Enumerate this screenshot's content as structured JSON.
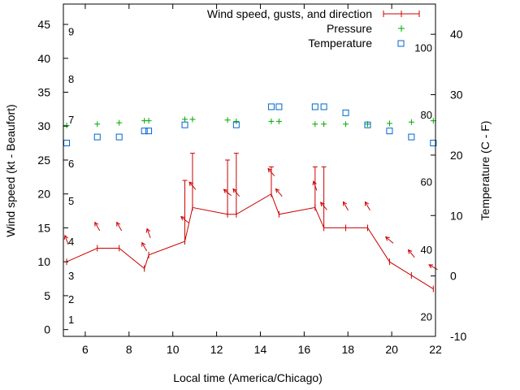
{
  "chart_data": {
    "type": "line",
    "xlabel": "Local time (America/Chicago)",
    "ylabel_left": "Wind speed (kt - Beaufort)",
    "ylabel_right": "Temperature (C - F)",
    "xlim": [
      5,
      22
    ],
    "x_ticks": [
      6,
      8,
      10,
      12,
      14,
      16,
      18,
      20,
      22
    ],
    "ylim_left": [
      -1,
      48
    ],
    "y_ticks_left": [
      0,
      5,
      10,
      15,
      20,
      25,
      30,
      35,
      40,
      45
    ],
    "ylim_right": [
      -10,
      45
    ],
    "y_ticks_right": [
      -10,
      0,
      10,
      20,
      30,
      40
    ],
    "beaufort_labels": [
      {
        "label": "1",
        "speed": 1.5
      },
      {
        "label": "2",
        "speed": 4.5
      },
      {
        "label": "3",
        "speed": 8
      },
      {
        "label": "4",
        "speed": 13
      },
      {
        "label": "5",
        "speed": 19
      },
      {
        "label": "6",
        "speed": 24.5
      },
      {
        "label": "7",
        "speed": 31
      },
      {
        "label": "8",
        "speed": 37
      },
      {
        "label": "9",
        "speed": 44
      }
    ],
    "fahrenheit_labels": [
      {
        "label": "20",
        "temp_c": -6.7
      },
      {
        "label": "40",
        "temp_c": 4.4
      },
      {
        "label": "60",
        "temp_c": 15.6
      },
      {
        "label": "80",
        "temp_c": 26.7
      },
      {
        "label": "100",
        "temp_c": 37.8
      }
    ],
    "series": [
      {
        "name": "Wind speed, gusts, and direction",
        "color": "#cc0000",
        "x": [
          5.15,
          6.55,
          7.55,
          8.7,
          8.9,
          10.55,
          10.9,
          12.5,
          12.9,
          14.5,
          14.85,
          16.5,
          16.9,
          17.9,
          18.9,
          19.9,
          20.9,
          21.9
        ],
        "wind": [
          10,
          12,
          12,
          9,
          11,
          13,
          18,
          17,
          17,
          20,
          17,
          18,
          15,
          15,
          15,
          10,
          8,
          6
        ],
        "gust": [
          null,
          null,
          null,
          null,
          null,
          22,
          26,
          25,
          26,
          24,
          null,
          24,
          24,
          null,
          null,
          null,
          null,
          null
        ],
        "direction_deg": [
          340,
          330,
          330,
          330,
          340,
          310,
          320,
          310,
          320,
          320,
          320,
          340,
          320,
          330,
          330,
          310,
          320,
          300
        ]
      },
      {
        "name": "Pressure",
        "color": "#00aa00",
        "x": [
          5.15,
          6.55,
          7.55,
          8.7,
          8.9,
          10.55,
          10.9,
          12.5,
          12.9,
          14.5,
          14.85,
          16.5,
          16.9,
          17.9,
          18.9,
          19.9,
          20.9,
          21.9
        ],
        "values": [
          30.1,
          30.3,
          30.5,
          30.8,
          30.8,
          31.0,
          31.0,
          30.9,
          30.7,
          30.7,
          30.7,
          30.3,
          30.3,
          30.3,
          30.3,
          30.4,
          30.6,
          30.8
        ]
      },
      {
        "name": "Temperature",
        "color": "#0066cc",
        "x": [
          5.15,
          6.55,
          7.55,
          8.7,
          8.9,
          10.55,
          12.9,
          14.5,
          14.85,
          16.5,
          16.9,
          17.9,
          18.9,
          19.9,
          20.9,
          21.9
        ],
        "values": [
          22,
          23,
          23,
          24,
          24,
          25,
          25,
          28,
          28,
          28,
          28,
          27,
          25,
          24,
          23,
          22
        ]
      }
    ],
    "legend_position": "top-right",
    "grid": false
  }
}
